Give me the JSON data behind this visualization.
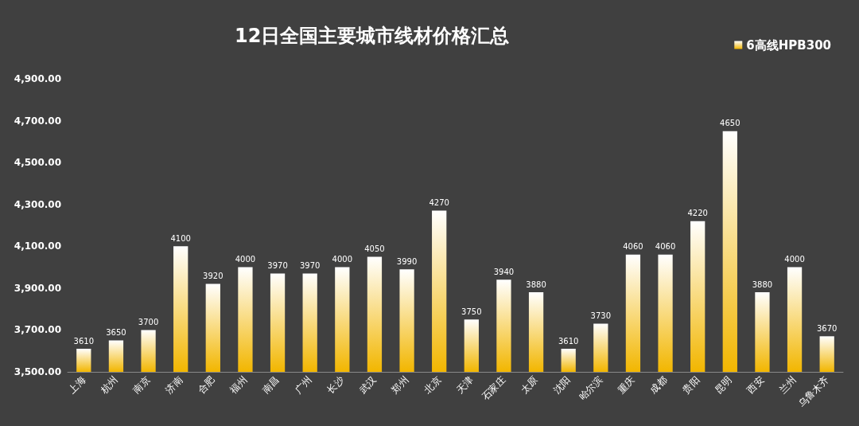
{
  "chart_data": {
    "type": "bar",
    "title": "12日全国主要城市线材价格汇总",
    "categories": [
      "上海",
      "杭州",
      "南京",
      "济南",
      "合肥",
      "福州",
      "南昌",
      "广州",
      "长沙",
      "武汉",
      "郑州",
      "北京",
      "天津",
      "石家庄",
      "太原",
      "沈阳",
      "哈尔滨",
      "重庆",
      "成都",
      "贵阳",
      "昆明",
      "西安",
      "兰州",
      "乌鲁木齐"
    ],
    "series": [
      {
        "name": "6高线HPB300",
        "color": "#f2b600",
        "values": [
          3610,
          3650,
          3700,
          4100,
          3920,
          4000,
          3970,
          3970,
          4000,
          4050,
          3990,
          4270,
          3750,
          3940,
          3880,
          3610,
          3730,
          4060,
          4060,
          4220,
          4650,
          3880,
          4000,
          3670
        ]
      }
    ],
    "ylim": [
      3500,
      4900
    ],
    "yticks": [
      {
        "value": 3500,
        "label": "3,500.00"
      },
      {
        "value": 3700,
        "label": "3,700.00"
      },
      {
        "value": 3900,
        "label": "3,900.00"
      },
      {
        "value": 4100,
        "label": "4,100.00"
      },
      {
        "value": 4300,
        "label": "4,300.00"
      },
      {
        "value": 4500,
        "label": "4,500.00"
      },
      {
        "value": 4700,
        "label": "4,700.00"
      },
      {
        "value": 4900,
        "label": "4,900.00"
      }
    ],
    "grid": false,
    "legend": "top right",
    "data_labels": true
  }
}
